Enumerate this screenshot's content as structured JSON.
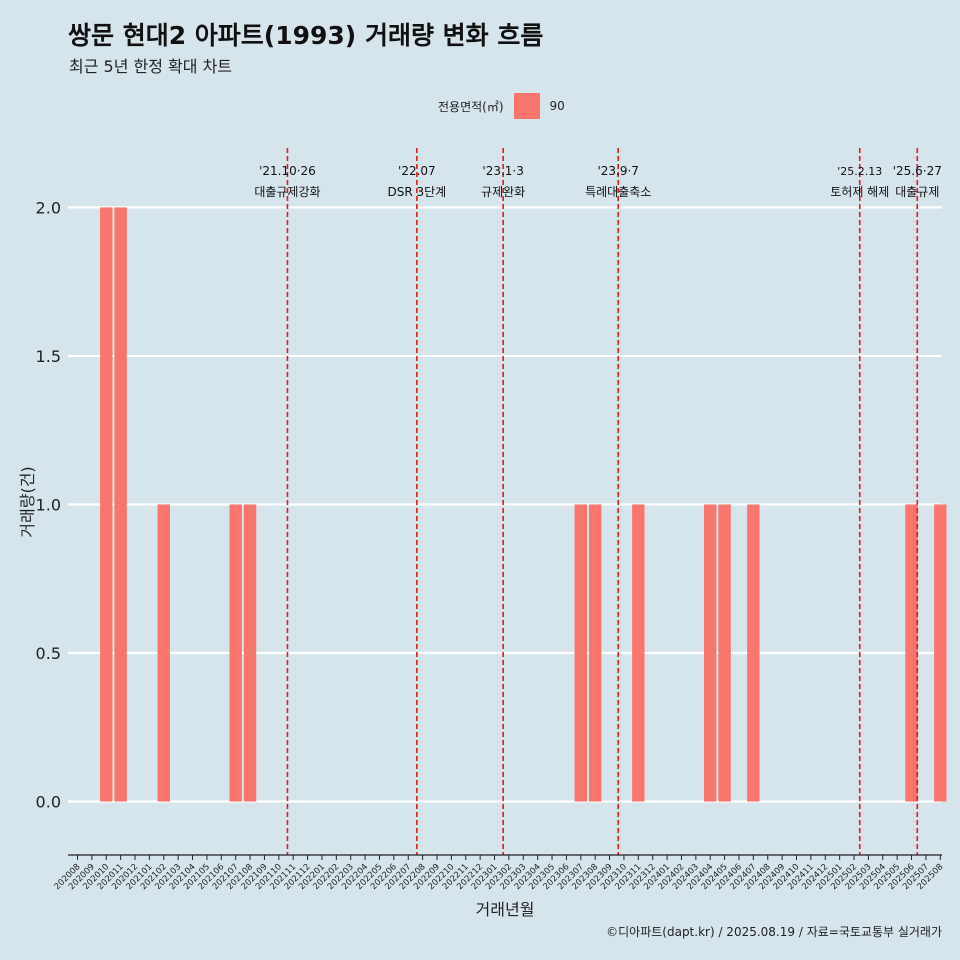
{
  "title": "쌍문 현대2 아파트(1993) 거래량 변화 흐름",
  "subtitle": "최근 5년 한정 확대 차트",
  "legend": {
    "title": "전용면적(㎡)",
    "entry": "90"
  },
  "caption": "©디아파트(dapt.kr) / 2025.08.19 / 자료=국토교통부 실거래가",
  "colors": {
    "bar": "#f8766d",
    "vline": "#e41a1c",
    "background": "#d6e4ec",
    "grid": "#ffffff"
  },
  "chart_data": {
    "type": "bar",
    "title": "쌍문 현대2 아파트(1993) 거래량 변화 흐름",
    "xlabel": "거래년월",
    "ylabel": "거래량(건)",
    "ylim": [
      -0.18,
      2.2
    ],
    "yticks": [
      0.0,
      0.5,
      1.0,
      1.5,
      2.0
    ],
    "ytick_labels": [
      "0.0",
      "0.5",
      "1.0",
      "1.5",
      "2.0"
    ],
    "categories": [
      "202008",
      "202009",
      "202010",
      "202011",
      "202012",
      "202101",
      "202102",
      "202103",
      "202104",
      "202105",
      "202106",
      "202107",
      "202108",
      "202109",
      "202110",
      "202111",
      "202112",
      "202201",
      "202202",
      "202203",
      "202204",
      "202205",
      "202206",
      "202207",
      "202208",
      "202209",
      "202210",
      "202211",
      "202212",
      "202301",
      "202302",
      "202303",
      "202304",
      "202305",
      "202306",
      "202307",
      "202308",
      "202309",
      "202310",
      "202311",
      "202312",
      "202401",
      "202402",
      "202403",
      "202404",
      "202405",
      "202406",
      "202407",
      "202408",
      "202409",
      "202410",
      "202411",
      "202412",
      "202501",
      "202502",
      "202503",
      "202504",
      "202505",
      "202506",
      "202507",
      "202508"
    ],
    "series": [
      {
        "name": "90",
        "values": [
          0,
          0,
          2,
          2,
          0,
          0,
          1,
          0,
          0,
          0,
          0,
          1,
          1,
          0,
          0,
          0,
          0,
          0,
          0,
          0,
          0,
          0,
          0,
          0,
          0,
          0,
          0,
          0,
          0,
          0,
          0,
          0,
          0,
          0,
          0,
          1,
          1,
          0,
          0,
          1,
          0,
          0,
          0,
          0,
          1,
          1,
          0,
          1,
          0,
          0,
          0,
          0,
          0,
          0,
          0,
          0,
          0,
          0,
          1,
          0,
          1
        ]
      }
    ],
    "events": [
      {
        "date": "'21.10·26",
        "label": "대출규제강화",
        "x": 14.6
      },
      {
        "date": "'22.07",
        "label": "DSR 3단계",
        "x": 23.6
      },
      {
        "date": "'23.1·3",
        "label": "규제완화",
        "x": 29.6
      },
      {
        "date": "'23.9·7",
        "label": "특례대출축소",
        "x": 37.6
      },
      {
        "date": "'25.2.13",
        "label": "토허제 해제",
        "x": 54.4
      },
      {
        "date": "'25.6·27",
        "label": "대출규제",
        "x": 58.4
      }
    ]
  }
}
